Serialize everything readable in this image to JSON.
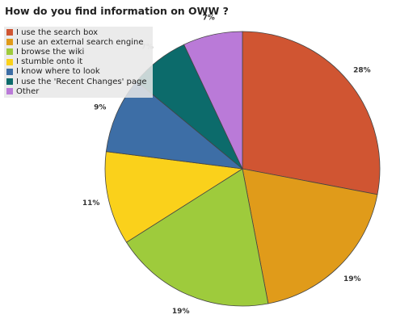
{
  "chart_data": {
    "type": "pie",
    "title": "How do you find information on OWW ?",
    "legend_position": "top-left",
    "slices": [
      {
        "name": "I use the search box",
        "value": 28,
        "label": "28%",
        "color": "#d05532"
      },
      {
        "name": "I use an external search engine",
        "value": 19,
        "label": "19%",
        "color": "#e09b1a"
      },
      {
        "name": "I browse the wiki",
        "value": 19,
        "label": "19%",
        "color": "#9ecb3c"
      },
      {
        "name": "I stumble onto it",
        "value": 11,
        "label": "11%",
        "color": "#fad11b"
      },
      {
        "name": "I know where to look",
        "value": 9,
        "label": "9%",
        "color": "#3d6ea6"
      },
      {
        "name": "I use the 'Recent Changes' page",
        "value": 7,
        "label": "7%",
        "color": "#0c6b6b"
      },
      {
        "name": "Other",
        "value": 7,
        "label": "7%",
        "color": "#ba7ad8"
      }
    ]
  }
}
